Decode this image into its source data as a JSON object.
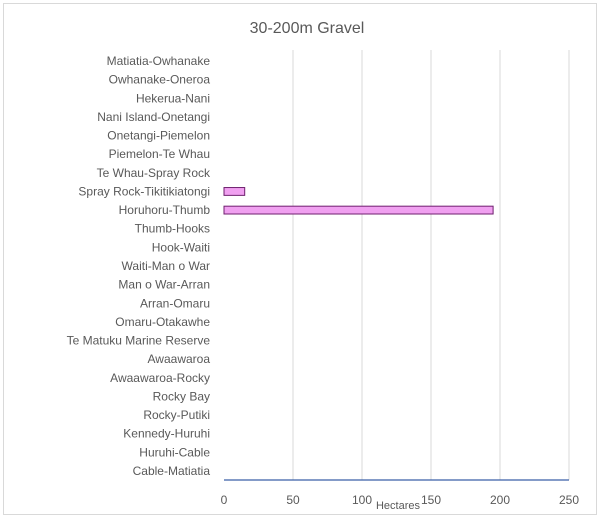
{
  "chart_data": {
    "type": "bar",
    "orientation": "horizontal",
    "title": "30-200m Gravel",
    "xlabel": "Hectares",
    "ylabel": "",
    "xlim": [
      0,
      250
    ],
    "xticks": [
      0,
      50,
      100,
      150,
      200,
      250
    ],
    "grid": true,
    "legend": "none",
    "bar_color": "#f0a0f0",
    "bar_edge_color": "#6e1f6e",
    "categories": [
      "Matiatia-Owhanake",
      "Owhanake-Oneroa",
      "Hekerua-Nani",
      "Nani Island-Onetangi",
      "Onetangi-Piemelon",
      "Piemelon-Te Whau",
      "Te Whau-Spray Rock",
      "Spray Rock-Tikitikiatongi",
      "Horuhoru-Thumb",
      "Thumb-Hooks",
      "Hook-Waiti",
      "Waiti-Man o War",
      "Man o War-Arran",
      "Arran-Omaru",
      "Omaru-Otakawhe",
      "Te Matuku Marine Reserve",
      "Awaawaroa",
      "Awaawaroa-Rocky",
      "Rocky Bay",
      "Rocky-Putiki",
      "Kennedy-Huruhi",
      "Huruhi-Cable",
      "Cable-Matiatia"
    ],
    "values": [
      0,
      0,
      0,
      0,
      0,
      0,
      0,
      15,
      195,
      0,
      0,
      0,
      0,
      0,
      0,
      0,
      0,
      0,
      0,
      0,
      0,
      0,
      0
    ]
  }
}
